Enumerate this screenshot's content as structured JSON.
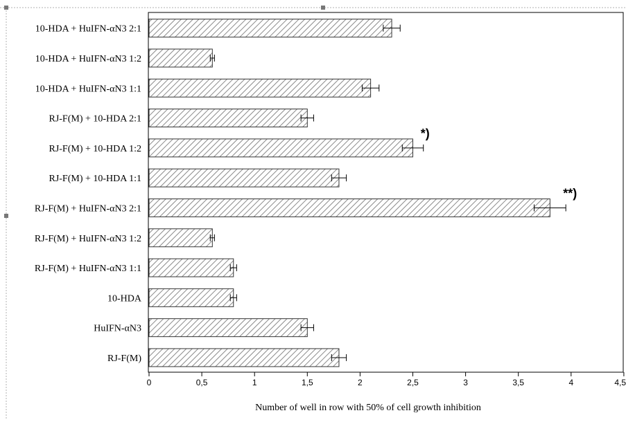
{
  "chart_data": {
    "type": "bar",
    "orientation": "horizontal",
    "categories": [
      "10-HDA + HuIFN-αN3 2:1",
      "10-HDA + HuIFN-αN3 1:2",
      "10-HDA + HuIFN-αN3 1:1",
      "RJ-F(M) + 10-HDA 2:1",
      "RJ-F(M) + 10-HDA 1:2",
      "RJ-F(M) + 10-HDA 1:1",
      "RJ-F(M) + HuIFN-αN3 2:1",
      "RJ-F(M) + HuIFN-αN3 1:2",
      "RJ-F(M) + HuIFN-αN3 1:1",
      "10-HDA",
      "HuIFN-αN3",
      "RJ-F(M)"
    ],
    "values": [
      2.3,
      0.6,
      2.1,
      1.5,
      2.5,
      1.8,
      3.8,
      0.6,
      0.8,
      0.8,
      1.5,
      1.8
    ],
    "errors": [
      0.08,
      0.02,
      0.08,
      0.06,
      0.1,
      0.07,
      0.15,
      0.02,
      0.03,
      0.03,
      0.06,
      0.07
    ],
    "annotations": [
      {
        "category_index": 4,
        "text": "*)"
      },
      {
        "category_index": 6,
        "text": "**)"
      }
    ],
    "xlabel": "Number of well  in row with 50% of cell growth inhibition",
    "ylabel": "",
    "title": "",
    "xlim": [
      0,
      4.5
    ],
    "xticks": [
      "0",
      "0,5",
      "1",
      "1,5",
      "2",
      "2,5",
      "3",
      "3,5",
      "4",
      "4,5"
    ],
    "grid": false,
    "bar_fill": "hatched",
    "colors": {
      "bar_stroke": "#333333",
      "hatch": "#888888",
      "axis": "#000000"
    }
  }
}
